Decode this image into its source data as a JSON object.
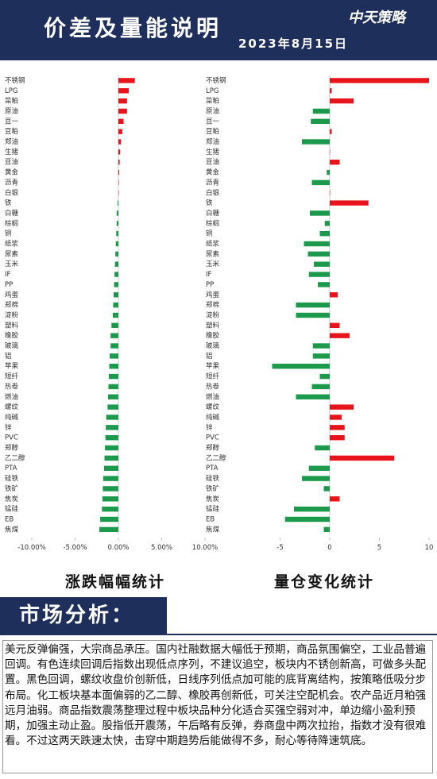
{
  "header": {
    "title": "价差及量能说明",
    "date": "2023年8月15日",
    "logo": "中天策略"
  },
  "chart_data": [
    {
      "type": "barh",
      "caption": "涨跌幅幅统计",
      "categories": [
        "不锈钢",
        "LPG",
        "菜粕",
        "原油",
        "豆一",
        "豆粕",
        "郑油",
        "生猪",
        "豆油",
        "黄金",
        "沥青",
        "白银",
        "铁",
        "白糖",
        "棕榈",
        "铜",
        "纸浆",
        "尿素",
        "玉米",
        "IF",
        "PP",
        "鸡蛋",
        "郑棉",
        "淀粉",
        "塑料",
        "橡胶",
        "玻璃",
        "铝",
        "苹果",
        "短纤",
        "热卷",
        "燃油",
        "螺纹",
        "纯碱",
        "锌",
        "PVC",
        "郑醇",
        "乙二醇",
        "PTA",
        "硅铁",
        "铁矿",
        "焦炭",
        "锰硅",
        "EB",
        "焦煤"
      ],
      "values": [
        1.9,
        1.2,
        1.0,
        1.0,
        0.6,
        0.45,
        0.3,
        0.2,
        0.15,
        0.1,
        0.05,
        0,
        -0.1,
        -0.2,
        -0.2,
        -0.25,
        -0.3,
        -0.35,
        -0.4,
        -0.45,
        -0.5,
        -0.55,
        -0.6,
        -0.65,
        -0.8,
        -0.9,
        -0.9,
        -1.0,
        -1.05,
        -1.1,
        -1.15,
        -1.2,
        -1.25,
        -1.4,
        -1.45,
        -1.5,
        -1.55,
        -1.6,
        -1.65,
        -1.75,
        -1.8,
        -1.85,
        -1.9,
        -2.1,
        -2.2
      ],
      "positive_color": "#e8141b",
      "negative_color": "#1a9a4a",
      "xlim": [
        -10,
        10
      ],
      "xticks": [
        {
          "value": -10,
          "label": "-10.00%"
        },
        {
          "value": -5,
          "label": "-5.00%"
        },
        {
          "value": 0,
          "label": "0.00%"
        },
        {
          "value": 5,
          "label": "5.00%"
        },
        {
          "value": 10,
          "label": "10.00%"
        }
      ]
    },
    {
      "type": "barh",
      "caption": "量仓变化统计",
      "categories": [
        "不锈钢",
        "LPG",
        "菜粕",
        "原油",
        "豆一",
        "豆粕",
        "郑油",
        "生猪",
        "豆油",
        "黄金",
        "沥青",
        "白银",
        "铁",
        "白糖",
        "棕榈",
        "铜",
        "纸浆",
        "尿素",
        "玉米",
        "IF",
        "PP",
        "鸡蛋",
        "郑棉",
        "淀粉",
        "塑料",
        "橡胶",
        "玻璃",
        "铝",
        "苹果",
        "短纤",
        "热卷",
        "燃油",
        "螺纹",
        "纯碱",
        "锌",
        "PVC",
        "郑醇",
        "乙二醇",
        "PTA",
        "硅铁",
        "铁矿",
        "焦炭",
        "锰硅",
        "EB",
        "焦煤"
      ],
      "values": [
        10,
        0.2,
        2.4,
        -1.7,
        -1.9,
        0.2,
        -2.8,
        0,
        1.0,
        -0.3,
        -1.8,
        0,
        3.9,
        -2.0,
        -0.5,
        -1.0,
        -2.6,
        -2.2,
        -1.6,
        -2.1,
        -1.2,
        0.8,
        -3.4,
        -3.4,
        1.0,
        2.0,
        -1.7,
        -1.7,
        -5.8,
        -1.0,
        -1.8,
        -3.4,
        2.4,
        1.2,
        1.5,
        1.5,
        -1.5,
        6.5,
        -2.1,
        -2.8,
        -0.6,
        1.0,
        -3.6,
        -4.5,
        -0.6
      ],
      "positive_color": "#e8141b",
      "negative_color": "#1a9a4a",
      "xlim": [
        -10,
        10
      ],
      "xticks": [
        -5,
        0,
        5,
        10
      ]
    }
  ],
  "analysis": {
    "title": "市场分析：",
    "text": "美元反弹偏强，大宗商品承压。国内社融数据大幅低于预期，商品氛围偏空，工业品普遍回调。有色连续回调后指数出现低点序列，不建议追空，板块内不锈创新高，可做多头配置。黑色回调，螺纹收盘价创新低，日线序列低点加可能的底背离结构，按策略低吸分步布局。化工板块基本面偏弱的乙二醇、橡胶再创新低，可关注空配机会。农产品近月粕强远月油弱。商品指数震荡整理过程中板块品种分化适合买强空弱对冲，单边缩小盈利预期，加强主动止盈。股指低开震荡，午后略有反弹，券商盘中两次拉抬，指数才没有很难看。不过这两天跌速太快，击穿中期趋势后能做得不多，耐心等待降速筑底。"
  }
}
